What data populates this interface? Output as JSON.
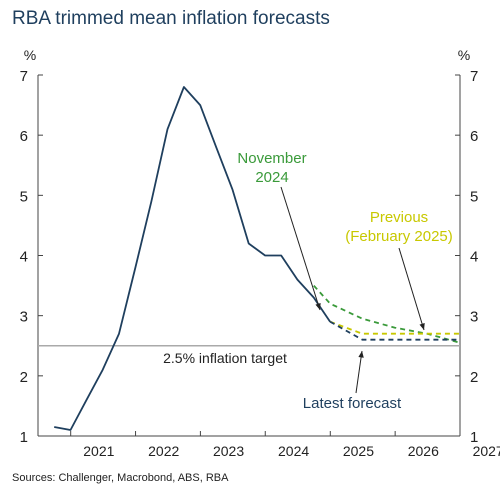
{
  "title": "RBA trimmed mean inflation forecasts",
  "source": "Sources: Challenger, Macrobond, ABS, RBA",
  "chart_data": {
    "type": "line",
    "ylabel_left": "%",
    "ylabel_right": "%",
    "ylim": [
      1,
      7
    ],
    "yticks": [
      1,
      2,
      3,
      4,
      5,
      6,
      7
    ],
    "xlim": [
      "2020-07-01",
      "2027-01-01"
    ],
    "xticks": [
      "2021",
      "2022",
      "2023",
      "2024",
      "2025",
      "2026",
      "2027"
    ],
    "grid": false,
    "target": {
      "value": 2.5,
      "label": "2.5% inflation target",
      "color": "#aaaaaa"
    },
    "series": [
      {
        "color": "#1f3f5e",
        "style": "solid",
        "points": [
          [
            "2020-09-30",
            1.15
          ],
          [
            "2020-12-31",
            1.1
          ],
          [
            "2021-03-31",
            1.6
          ],
          [
            "2021-06-30",
            2.1
          ],
          [
            "2021-09-30",
            2.7
          ],
          [
            "2021-12-31",
            3.8
          ],
          [
            "2022-03-31",
            4.9
          ],
          [
            "2022-06-30",
            6.1
          ],
          [
            "2022-09-30",
            6.8
          ],
          [
            "2022-12-31",
            6.5
          ],
          [
            "2023-03-31",
            5.8
          ],
          [
            "2023-06-30",
            5.1
          ],
          [
            "2023-09-30",
            4.2
          ],
          [
            "2023-12-31",
            4.0
          ],
          [
            "2024-03-31",
            4.0
          ],
          [
            "2024-06-30",
            3.6
          ],
          [
            "2024-09-30",
            3.3
          ],
          [
            "2024-12-31",
            2.9
          ]
        ]
      },
      {
        "name": "November 2024",
        "color": "#3a9a3a",
        "style": "dashed",
        "points": [
          [
            "2024-09-30",
            3.5
          ],
          [
            "2024-12-31",
            3.2
          ],
          [
            "2025-06-30",
            2.95
          ],
          [
            "2025-12-31",
            2.8
          ],
          [
            "2026-06-30",
            2.7
          ],
          [
            "2026-12-31",
            2.55
          ]
        ]
      },
      {
        "name": "Previous (February 2025)",
        "color": "#c8c800",
        "style": "dashed",
        "points": [
          [
            "2024-12-31",
            2.9
          ],
          [
            "2025-06-30",
            2.7
          ],
          [
            "2026-12-31",
            2.7
          ]
        ]
      },
      {
        "name": "Latest forecast",
        "color": "#1f3f5e",
        "style": "dashed",
        "points": [
          [
            "2024-12-31",
            2.9
          ],
          [
            "2025-06-30",
            2.6
          ],
          [
            "2026-12-31",
            2.6
          ]
        ]
      }
    ],
    "annotations": {
      "november": {
        "lines": [
          "November",
          "2024"
        ],
        "color": "#3a9a3a"
      },
      "previous": {
        "lines": [
          "Previous",
          "(February 2025)"
        ],
        "color": "#c8c800"
      },
      "latest": {
        "lines": [
          "Latest forecast"
        ],
        "color": "#1f3f5e"
      }
    }
  }
}
